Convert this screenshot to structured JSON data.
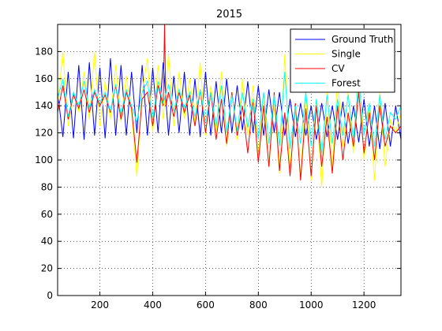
{
  "chart_data": {
    "type": "line",
    "title": "2015",
    "xlabel": "",
    "ylabel": "",
    "xlim": [
      40,
      1340
    ],
    "ylim": [
      0,
      200
    ],
    "xticks": [
      200,
      400,
      600,
      800,
      1000,
      1200
    ],
    "yticks": [
      0,
      20,
      40,
      60,
      80,
      100,
      120,
      140,
      160,
      180
    ],
    "grid": true,
    "legend_position": "top-right",
    "series": [
      {
        "name": "Ground Truth",
        "color": "#0000ff",
        "x": [
          40,
          60,
          80,
          100,
          120,
          140,
          160,
          180,
          200,
          220,
          240,
          260,
          280,
          300,
          320,
          340,
          360,
          380,
          400,
          420,
          440,
          460,
          480,
          500,
          520,
          540,
          560,
          580,
          600,
          620,
          640,
          660,
          680,
          700,
          720,
          740,
          760,
          780,
          800,
          820,
          840,
          860,
          880,
          900,
          920,
          940,
          960,
          980,
          1000,
          1020,
          1040,
          1060,
          1080,
          1100,
          1120,
          1140,
          1160,
          1180,
          1200,
          1220,
          1240,
          1260,
          1280,
          1300,
          1320,
          1340
        ],
        "y": [
          150,
          117,
          165,
          116,
          170,
          115,
          172,
          118,
          168,
          116,
          175,
          118,
          170,
          118,
          165,
          120,
          170,
          118,
          168,
          120,
          172,
          118,
          162,
          120,
          165,
          118,
          160,
          117,
          165,
          118,
          158,
          120,
          160,
          120,
          155,
          122,
          158,
          120,
          155,
          118,
          152,
          120,
          150,
          118,
          145,
          117,
          142,
          118,
          140,
          115,
          142,
          117,
          140,
          115,
          143,
          112,
          140,
          113,
          145,
          110,
          140,
          108,
          142,
          110,
          140,
          115
        ]
      },
      {
        "name": "Single",
        "color": "#ffff00",
        "x": [
          40,
          60,
          80,
          100,
          120,
          140,
          160,
          180,
          200,
          220,
          240,
          260,
          280,
          300,
          320,
          340,
          360,
          380,
          400,
          420,
          440,
          460,
          480,
          500,
          520,
          540,
          560,
          580,
          600,
          620,
          640,
          660,
          680,
          700,
          720,
          740,
          760,
          780,
          800,
          820,
          840,
          860,
          880,
          900,
          920,
          940,
          960,
          980,
          1000,
          1020,
          1040,
          1060,
          1080,
          1100,
          1120,
          1140,
          1160,
          1180,
          1200,
          1220,
          1240,
          1260,
          1280,
          1300,
          1320,
          1340
        ],
        "y": [
          140,
          180,
          125,
          150,
          135,
          165,
          130,
          180,
          125,
          158,
          130,
          170,
          128,
          162,
          135,
          88,
          150,
          175,
          120,
          170,
          130,
          178,
          125,
          165,
          130,
          160,
          128,
          172,
          118,
          155,
          120,
          165,
          110,
          150,
          115,
          160,
          118,
          155,
          100,
          150,
          95,
          145,
          90,
          178,
          92,
          140,
          88,
          150,
          85,
          145,
          80,
          150,
          95,
          160,
          110,
          150,
          105,
          170,
          100,
          140,
          85,
          150,
          95,
          130,
          120,
          135
        ]
      },
      {
        "name": "CV",
        "color": "#ff0000",
        "x": [
          40,
          60,
          80,
          100,
          120,
          140,
          160,
          180,
          200,
          220,
          240,
          260,
          280,
          300,
          320,
          340,
          360,
          380,
          400,
          420,
          440,
          445,
          450,
          460,
          480,
          500,
          520,
          540,
          560,
          580,
          600,
          620,
          640,
          660,
          680,
          700,
          720,
          740,
          760,
          780,
          800,
          820,
          840,
          860,
          880,
          900,
          920,
          940,
          960,
          980,
          1000,
          1020,
          1040,
          1060,
          1080,
          1100,
          1120,
          1140,
          1160,
          1180,
          1200,
          1220,
          1240,
          1260,
          1280,
          1300,
          1320,
          1340
        ],
        "y": [
          135,
          155,
          130,
          148,
          138,
          152,
          135,
          150,
          140,
          148,
          135,
          155,
          130,
          150,
          138,
          98,
          145,
          150,
          125,
          155,
          140,
          200,
          140,
          150,
          132,
          150,
          135,
          148,
          125,
          152,
          120,
          150,
          115,
          145,
          112,
          150,
          118,
          140,
          105,
          145,
          98,
          140,
          95,
          150,
          92,
          135,
          88,
          142,
          85,
          138,
          88,
          140,
          95,
          132,
          90,
          140,
          100,
          135,
          110,
          150,
          105,
          135,
          100,
          140,
          110,
          125,
          120,
          125
        ]
      },
      {
        "name": "Forest",
        "color": "#00ffff",
        "x": [
          40,
          60,
          80,
          100,
          120,
          140,
          160,
          180,
          200,
          220,
          240,
          260,
          280,
          300,
          320,
          340,
          360,
          380,
          400,
          420,
          440,
          460,
          480,
          500,
          520,
          540,
          560,
          580,
          600,
          620,
          640,
          660,
          680,
          700,
          720,
          740,
          760,
          780,
          800,
          820,
          840,
          860,
          880,
          900,
          920,
          940,
          960,
          980,
          1000,
          1020,
          1040,
          1060,
          1080,
          1100,
          1120,
          1140,
          1160,
          1180,
          1200,
          1220,
          1240,
          1260,
          1280,
          1300,
          1320,
          1340
        ],
        "y": [
          145,
          160,
          132,
          150,
          140,
          158,
          138,
          152,
          142,
          150,
          136,
          156,
          134,
          152,
          140,
          128,
          150,
          158,
          130,
          158,
          142,
          156,
          136,
          152,
          138,
          150,
          132,
          152,
          128,
          150,
          125,
          155,
          120,
          148,
          122,
          150,
          124,
          145,
          115,
          150,
          112,
          148,
          110,
          165,
          108,
          140,
          112,
          150,
          110,
          145,
          105,
          148,
          112,
          145,
          118,
          148,
          115,
          160,
          118,
          142,
          110,
          148,
          115,
          135,
          130,
          140
        ]
      }
    ]
  }
}
